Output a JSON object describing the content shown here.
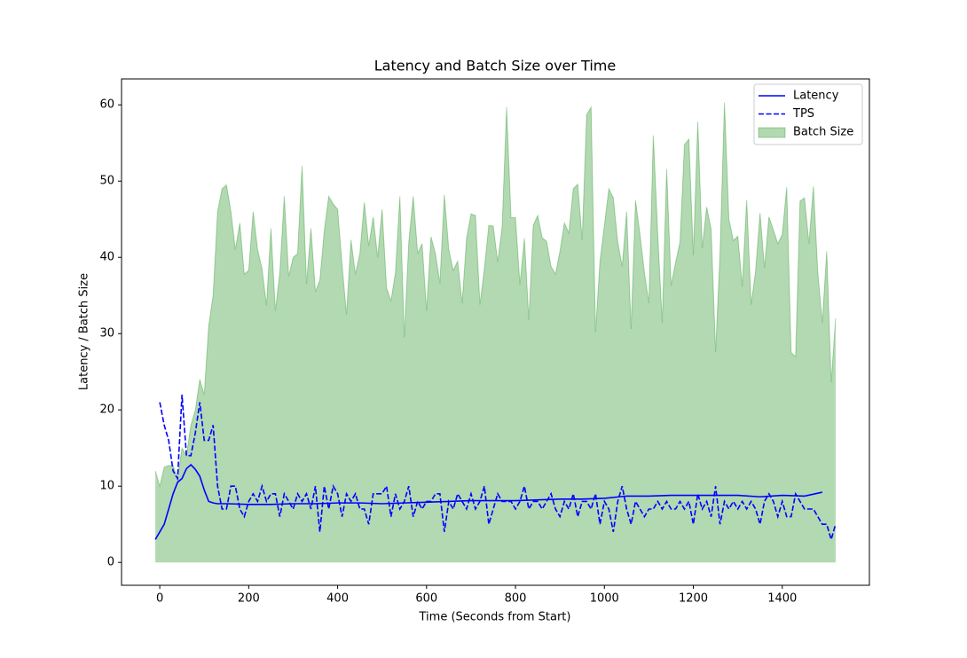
{
  "chart_data": {
    "type": "line",
    "title": "Latency and Batch Size over Time",
    "xlabel": "Time (Seconds from Start)",
    "ylabel": "Latency / Batch Size",
    "xlim": [
      -86,
      1596
    ],
    "ylim": [
      -3,
      63.4
    ],
    "xticks": [
      0,
      200,
      400,
      600,
      800,
      1000,
      1200,
      1400
    ],
    "yticks": [
      0,
      10,
      20,
      30,
      40,
      50,
      60
    ],
    "legend": "upper right",
    "series": [
      {
        "name": "Latency",
        "type": "line",
        "style": "solid",
        "color": "#0000ff",
        "x": [
          -10,
          0,
          10,
          20,
          30,
          40,
          50,
          60,
          70,
          80,
          90,
          100,
          110,
          120,
          130,
          150,
          200,
          250,
          300,
          350,
          400,
          450,
          500,
          550,
          600,
          650,
          700,
          750,
          800,
          850,
          900,
          950,
          1000,
          1050,
          1100,
          1150,
          1200,
          1250,
          1300,
          1350,
          1400,
          1450,
          1490
        ],
        "values": [
          3,
          4,
          5,
          7,
          9,
          10.5,
          11,
          12.3,
          12.8,
          12.2,
          11.3,
          9.5,
          8,
          7.8,
          7.7,
          7.7,
          7.6,
          7.6,
          7.7,
          7.7,
          7.8,
          7.8,
          7.7,
          7.8,
          7.9,
          8,
          8.1,
          8.1,
          8.1,
          8.2,
          8.3,
          8.3,
          8.4,
          8.7,
          8.7,
          8.8,
          8.8,
          8.8,
          8.8,
          8.6,
          8.8,
          8.7,
          9.2
        ]
      },
      {
        "name": "TPS",
        "type": "line",
        "style": "dashed",
        "color": "#0000ff",
        "x": [
          0,
          10,
          20,
          30,
          40,
          50,
          60,
          70,
          80,
          90,
          100,
          110,
          120,
          130,
          140,
          150,
          160,
          170,
          180,
          190,
          200,
          210,
          220,
          230,
          240,
          250,
          260,
          270,
          280,
          290,
          300,
          310,
          320,
          330,
          340,
          350,
          360,
          370,
          380,
          390,
          400,
          410,
          420,
          430,
          440,
          450,
          460,
          470,
          480,
          490,
          500,
          510,
          520,
          530,
          540,
          550,
          560,
          570,
          580,
          590,
          600,
          610,
          620,
          630,
          640,
          650,
          660,
          670,
          680,
          690,
          700,
          710,
          720,
          730,
          740,
          750,
          760,
          770,
          780,
          790,
          800,
          810,
          820,
          830,
          840,
          850,
          860,
          870,
          880,
          890,
          900,
          910,
          920,
          930,
          940,
          950,
          960,
          970,
          980,
          990,
          1000,
          1010,
          1020,
          1030,
          1040,
          1050,
          1060,
          1070,
          1080,
          1090,
          1100,
          1110,
          1120,
          1130,
          1140,
          1150,
          1160,
          1170,
          1180,
          1190,
          1200,
          1210,
          1220,
          1230,
          1240,
          1250,
          1260,
          1270,
          1280,
          1290,
          1300,
          1310,
          1320,
          1330,
          1340,
          1350,
          1360,
          1370,
          1380,
          1390,
          1400,
          1410,
          1420,
          1430,
          1440,
          1450,
          1460,
          1470,
          1480,
          1490,
          1500,
          1510,
          1520
        ],
        "values": [
          21,
          18,
          16,
          12,
          11,
          22,
          14,
          14,
          17,
          21,
          16,
          16,
          18,
          10,
          7,
          7,
          10,
          10,
          7,
          6,
          8,
          9,
          8,
          10,
          8,
          9,
          9,
          6,
          9,
          8,
          7,
          9,
          8,
          9,
          7,
          10,
          4,
          10,
          7,
          10,
          9,
          6,
          9,
          8,
          9,
          7,
          7,
          5,
          9,
          9,
          9,
          10,
          6,
          9,
          7,
          8,
          10,
          6,
          8,
          7,
          8,
          8,
          9,
          9,
          4,
          8,
          7,
          9,
          8,
          7,
          9,
          7,
          8,
          10,
          5,
          7,
          9,
          8,
          8,
          8,
          7,
          8,
          10,
          7,
          8,
          8,
          7,
          8,
          9,
          7,
          6,
          8,
          7,
          9,
          6,
          8,
          8,
          7,
          9,
          5,
          8,
          7,
          4,
          8,
          10,
          7,
          5,
          8,
          7,
          6,
          7,
          7,
          8,
          7,
          8,
          7,
          7,
          8,
          7,
          8,
          5,
          9,
          7,
          8,
          6,
          10,
          5,
          8,
          7,
          8,
          7,
          8,
          7,
          8,
          7,
          5,
          8,
          9,
          8,
          6,
          8,
          6,
          6,
          9,
          8,
          7,
          7,
          7,
          6,
          5,
          5,
          3,
          5
        ]
      },
      {
        "name": "Batch Size",
        "type": "area",
        "color": "#008000",
        "alpha": 0.3,
        "x": [
          -10,
          0,
          10,
          20,
          30,
          40,
          50,
          60,
          70,
          80,
          90,
          100,
          110,
          120,
          130,
          140,
          150,
          160,
          170,
          180,
          190,
          200,
          210,
          220,
          230,
          240,
          250,
          260,
          270,
          280,
          290,
          300,
          310,
          320,
          330,
          340,
          350,
          360,
          370,
          380,
          390,
          400,
          410,
          420,
          430,
          440,
          450,
          460,
          470,
          480,
          490,
          500,
          510,
          520,
          530,
          540,
          550,
          560,
          570,
          580,
          590,
          600,
          610,
          620,
          630,
          640,
          650,
          660,
          670,
          680,
          690,
          700,
          710,
          720,
          730,
          740,
          750,
          760,
          770,
          780,
          790,
          800,
          810,
          820,
          830,
          840,
          850,
          860,
          870,
          880,
          890,
          900,
          910,
          920,
          930,
          940,
          950,
          960,
          970,
          980,
          990,
          1000,
          1010,
          1020,
          1030,
          1040,
          1050,
          1060,
          1070,
          1080,
          1090,
          1100,
          1110,
          1120,
          1130,
          1140,
          1150,
          1160,
          1170,
          1180,
          1190,
          1200,
          1210,
          1220,
          1230,
          1240,
          1250,
          1260,
          1270,
          1280,
          1290,
          1300,
          1310,
          1320,
          1330,
          1340,
          1350,
          1360,
          1370,
          1380,
          1390,
          1400,
          1410,
          1420,
          1430,
          1440,
          1450,
          1460,
          1470,
          1480,
          1490,
          1500,
          1510,
          1520
        ],
        "values": [
          12,
          10,
          12.5,
          12.7,
          12.7,
          11,
          15,
          14,
          18,
          20,
          24,
          22,
          31,
          35,
          46,
          49,
          49.5,
          46,
          41,
          44.5,
          37.8,
          38.3,
          46,
          41,
          38.5,
          33.7,
          43.8,
          33,
          38,
          48,
          37.5,
          40,
          40.5,
          52,
          36.5,
          43.8,
          35.5,
          37,
          43.5,
          48,
          47,
          46.3,
          39,
          32.5,
          42.3,
          37.8,
          40.5,
          47.2,
          41.5,
          45.3,
          40,
          46.3,
          36,
          34.3,
          38,
          48,
          29.5,
          42,
          48,
          40.5,
          41.8,
          33,
          42.7,
          40.5,
          36.6,
          48.2,
          41,
          38.3,
          39.5,
          34,
          42.5,
          45.7,
          45.5,
          33.8,
          38.5,
          44.2,
          44.1,
          39.4,
          44,
          59.7,
          45.2,
          45.2,
          36.4,
          42.5,
          31.8,
          44.2,
          45.5,
          42.6,
          42.1,
          38.8,
          37.8,
          40.8,
          44.5,
          43.2,
          49,
          49.6,
          42.3,
          58.7,
          59.7,
          30.2,
          39.5,
          44.2,
          49,
          47.8,
          42,
          38.8,
          46,
          30.6,
          47.5,
          43,
          38,
          34,
          56,
          43,
          31.4,
          51.6,
          36.3,
          39.3,
          42,
          54.8,
          55.5,
          40.3,
          57.8,
          41.2,
          46.6,
          43.7,
          27.6,
          40.5,
          60.3,
          45,
          42.2,
          42.8,
          36.2,
          47.5,
          33.8,
          38.2,
          45.8,
          38.6,
          45.3,
          43.6,
          41.8,
          43,
          49.2,
          27.5,
          27,
          47.4,
          47.8,
          41.8,
          49.3,
          38,
          31.4,
          40.8,
          23.6,
          32
        ]
      }
    ]
  }
}
